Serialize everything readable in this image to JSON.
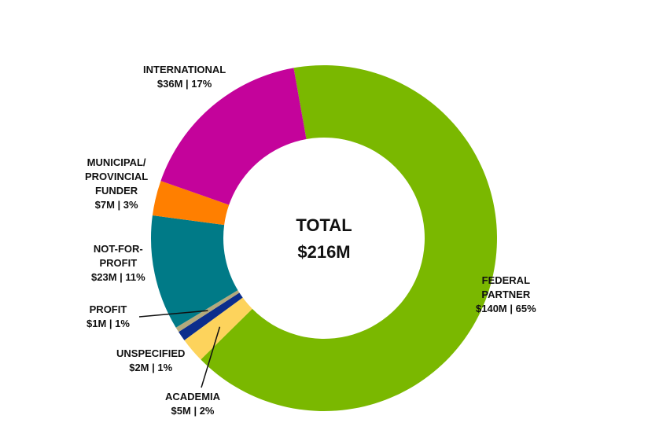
{
  "chart_data": {
    "type": "pie",
    "variant": "donut",
    "title": "TOTAL",
    "total_label": "$216M",
    "slices": [
      {
        "name": "FEDERAL PARTNER",
        "lines": [
          "FEDERAL",
          "PARTNER"
        ],
        "value": 140,
        "value_label": "$140M | 65%",
        "percent": 65,
        "color": "#7ab800"
      },
      {
        "name": "ACADEMIA",
        "lines": [
          "ACADEMIA"
        ],
        "value": 5,
        "value_label": "$5M | 2%",
        "percent": 2,
        "color": "#fdd35c"
      },
      {
        "name": "UNSPECIFIED",
        "lines": [
          "UNSPECIFIED"
        ],
        "value": 2,
        "value_label": "$2M | 1%",
        "percent": 1,
        "color": "#0b2d8c"
      },
      {
        "name": "PROFIT",
        "lines": [
          "PROFIT"
        ],
        "value": 1,
        "value_label": "$1M | 1%",
        "percent": 1,
        "color": "#b3a97c"
      },
      {
        "name": "NOT-FOR-PROFIT",
        "lines": [
          "NOT-FOR-",
          "PROFIT"
        ],
        "value": 23,
        "value_label": "$23M | 11%",
        "percent": 11,
        "color": "#007a87"
      },
      {
        "name": "MUNICIPAL/PROVINCIAL FUNDER",
        "lines": [
          "MUNICIPAL/",
          "PROVINCIAL",
          "FUNDER"
        ],
        "value": 7,
        "value_label": "$7M | 3%",
        "percent": 3,
        "color": "#ff7f00"
      },
      {
        "name": "INTERNATIONAL",
        "lines": [
          "INTERNATIONAL"
        ],
        "value": 36,
        "value_label": "$36M | 17%",
        "percent": 17,
        "color": "#c4039b"
      }
    ]
  }
}
